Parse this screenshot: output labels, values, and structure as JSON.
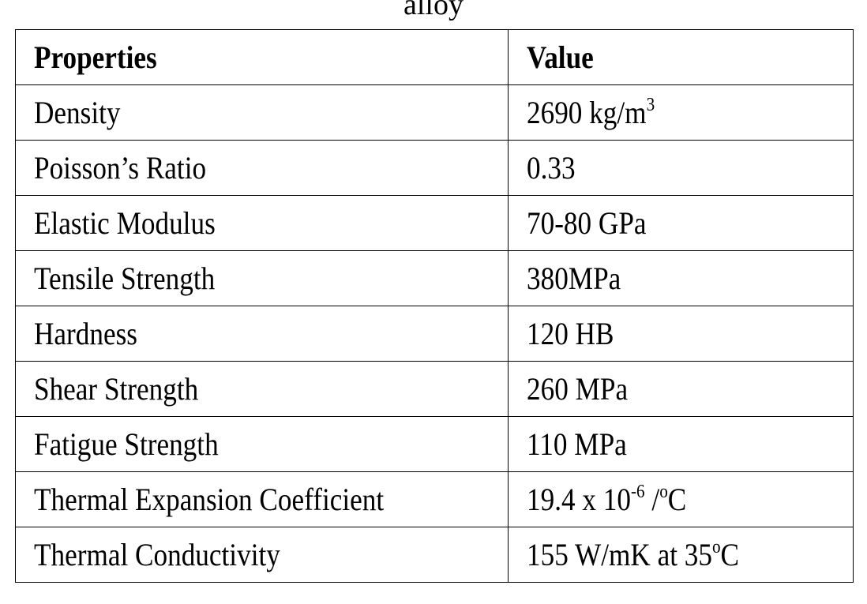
{
  "caption": "alloy",
  "table": {
    "header": [
      "Properties",
      "Value"
    ],
    "rows": [
      {
        "property": "Density",
        "value": [
          {
            "text": "2690 kg/m"
          },
          {
            "sup": "3"
          }
        ]
      },
      {
        "property": "Poisson’s Ratio",
        "value": [
          {
            "text": "0.33"
          }
        ]
      },
      {
        "property": "Elastic Modulus",
        "value": [
          {
            "text": "70-80 GPa"
          }
        ]
      },
      {
        "property": "Tensile Strength",
        "value": [
          {
            "text": "380MPa"
          }
        ]
      },
      {
        "property": "Hardness",
        "value": [
          {
            "text": "120 HB"
          }
        ]
      },
      {
        "property": "Shear Strength",
        "value": [
          {
            "text": "260 MPa"
          }
        ]
      },
      {
        "property": "Fatigue Strength",
        "value": [
          {
            "text": "110 MPa"
          }
        ]
      },
      {
        "property": "Thermal Expansion Coefficient",
        "value": [
          {
            "text": "19.4 x 10"
          },
          {
            "sup": "-6"
          },
          {
            "text": " /"
          },
          {
            "sup": "o"
          },
          {
            "text": "C"
          }
        ]
      },
      {
        "property": "Thermal Conductivity",
        "value": [
          {
            "text": "155 W/mK at 35"
          },
          {
            "sup": "o"
          },
          {
            "text": "C"
          }
        ]
      }
    ]
  }
}
